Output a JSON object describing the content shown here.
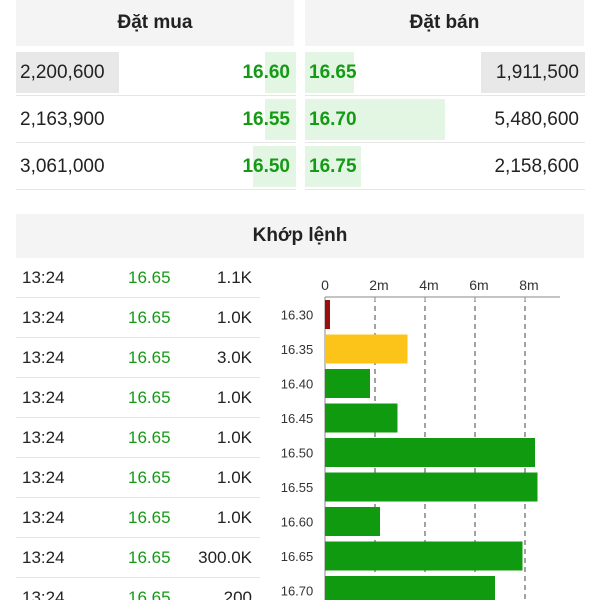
{
  "order_book": {
    "buy_title": "Đặt mua",
    "sell_title": "Đặt bán",
    "buy": [
      {
        "qty": "2,200,600",
        "price": "16.60",
        "level": 0.4
      },
      {
        "qty": "2,163,900",
        "price": "16.55",
        "level": 0.4
      },
      {
        "qty": "3,061,000",
        "price": "16.50",
        "level": 0.55
      }
    ],
    "sell": [
      {
        "price": "16.65",
        "qty": "1,911,500",
        "level": 0.35
      },
      {
        "price": "16.70",
        "qty": "5,480,600",
        "level": 1.0
      },
      {
        "price": "16.75",
        "qty": "2,158,600",
        "level": 0.4
      }
    ]
  },
  "matched": {
    "title": "Khớp lệnh",
    "trades": [
      {
        "time": "13:24",
        "price": "16.65",
        "volume": "1.1K"
      },
      {
        "time": "13:24",
        "price": "16.65",
        "volume": "1.0K"
      },
      {
        "time": "13:24",
        "price": "16.65",
        "volume": "3.0K"
      },
      {
        "time": "13:24",
        "price": "16.65",
        "volume": "1.0K"
      },
      {
        "time": "13:24",
        "price": "16.65",
        "volume": "1.0K"
      },
      {
        "time": "13:24",
        "price": "16.65",
        "volume": "1.0K"
      },
      {
        "time": "13:24",
        "price": "16.65",
        "volume": "1.0K"
      },
      {
        "time": "13:24",
        "price": "16.65",
        "volume": "300.0K"
      },
      {
        "time": "13:24",
        "price": "16.65",
        "volume": "200"
      }
    ]
  },
  "colors": {
    "up": "#0f9a0f",
    "down": "#9b0e0e",
    "reference": "#fcc419"
  },
  "chart_data": {
    "type": "bar",
    "orientation": "horizontal",
    "categories": [
      "16.30",
      "16.35",
      "16.40",
      "16.45",
      "16.50",
      "16.55",
      "16.60",
      "16.65",
      "16.70"
    ],
    "values": [
      0.2,
      3.3,
      1.8,
      2.9,
      8.4,
      8.5,
      2.2,
      7.9,
      6.8
    ],
    "bar_colors": [
      "#9b0e0e",
      "#fcc419",
      "#0f9a0f",
      "#0f9a0f",
      "#0f9a0f",
      "#0f9a0f",
      "#0f9a0f",
      "#0f9a0f",
      "#0f9a0f"
    ],
    "x_ticks": [
      "0",
      "2m",
      "4m",
      "6m",
      "8m"
    ],
    "x_tick_values": [
      0,
      2,
      4,
      6,
      8
    ],
    "xlim": [
      0,
      9.4
    ],
    "grid": "dashed vertical",
    "title": "",
    "xlabel": "",
    "ylabel": ""
  }
}
